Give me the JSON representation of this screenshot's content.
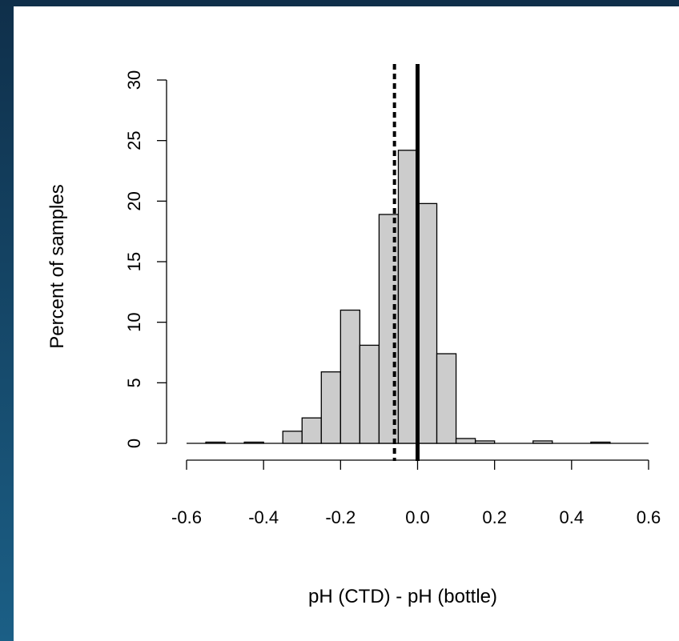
{
  "chart_data": {
    "type": "bar",
    "title": "",
    "xlabel": "pH (CTD) - pH (bottle)",
    "ylabel": "Percent of samples",
    "xlim": [
      -0.6,
      0.6
    ],
    "ylim": [
      0,
      30
    ],
    "x_ticks": [
      "-0.6",
      "-0.4",
      "-0.2",
      "0.0",
      "0.2",
      "0.4",
      "0.6"
    ],
    "y_ticks": [
      "0",
      "5",
      "10",
      "15",
      "20",
      "25",
      "30"
    ],
    "bin_width": 0.05,
    "bins": [
      {
        "start": -0.55,
        "value": 0.1
      },
      {
        "start": -0.45,
        "value": 0.1
      },
      {
        "start": -0.35,
        "value": 1.0
      },
      {
        "start": -0.3,
        "value": 2.1
      },
      {
        "start": -0.25,
        "value": 5.9
      },
      {
        "start": -0.2,
        "value": 11.0
      },
      {
        "start": -0.15,
        "value": 8.1
      },
      {
        "start": -0.1,
        "value": 18.9
      },
      {
        "start": -0.05,
        "value": 24.2
      },
      {
        "start": 0.0,
        "value": 19.8
      },
      {
        "start": 0.05,
        "value": 7.4
      },
      {
        "start": 0.1,
        "value": 0.4
      },
      {
        "start": 0.15,
        "value": 0.2
      },
      {
        "start": 0.3,
        "value": 0.2
      },
      {
        "start": 0.45,
        "value": 0.1
      }
    ],
    "reference_lines": [
      {
        "x": 0.0,
        "style": "solid"
      },
      {
        "x": -0.06,
        "style": "dashed"
      }
    ],
    "bar_fill": "#cccccc",
    "bar_stroke": "#000000",
    "grid": false
  }
}
